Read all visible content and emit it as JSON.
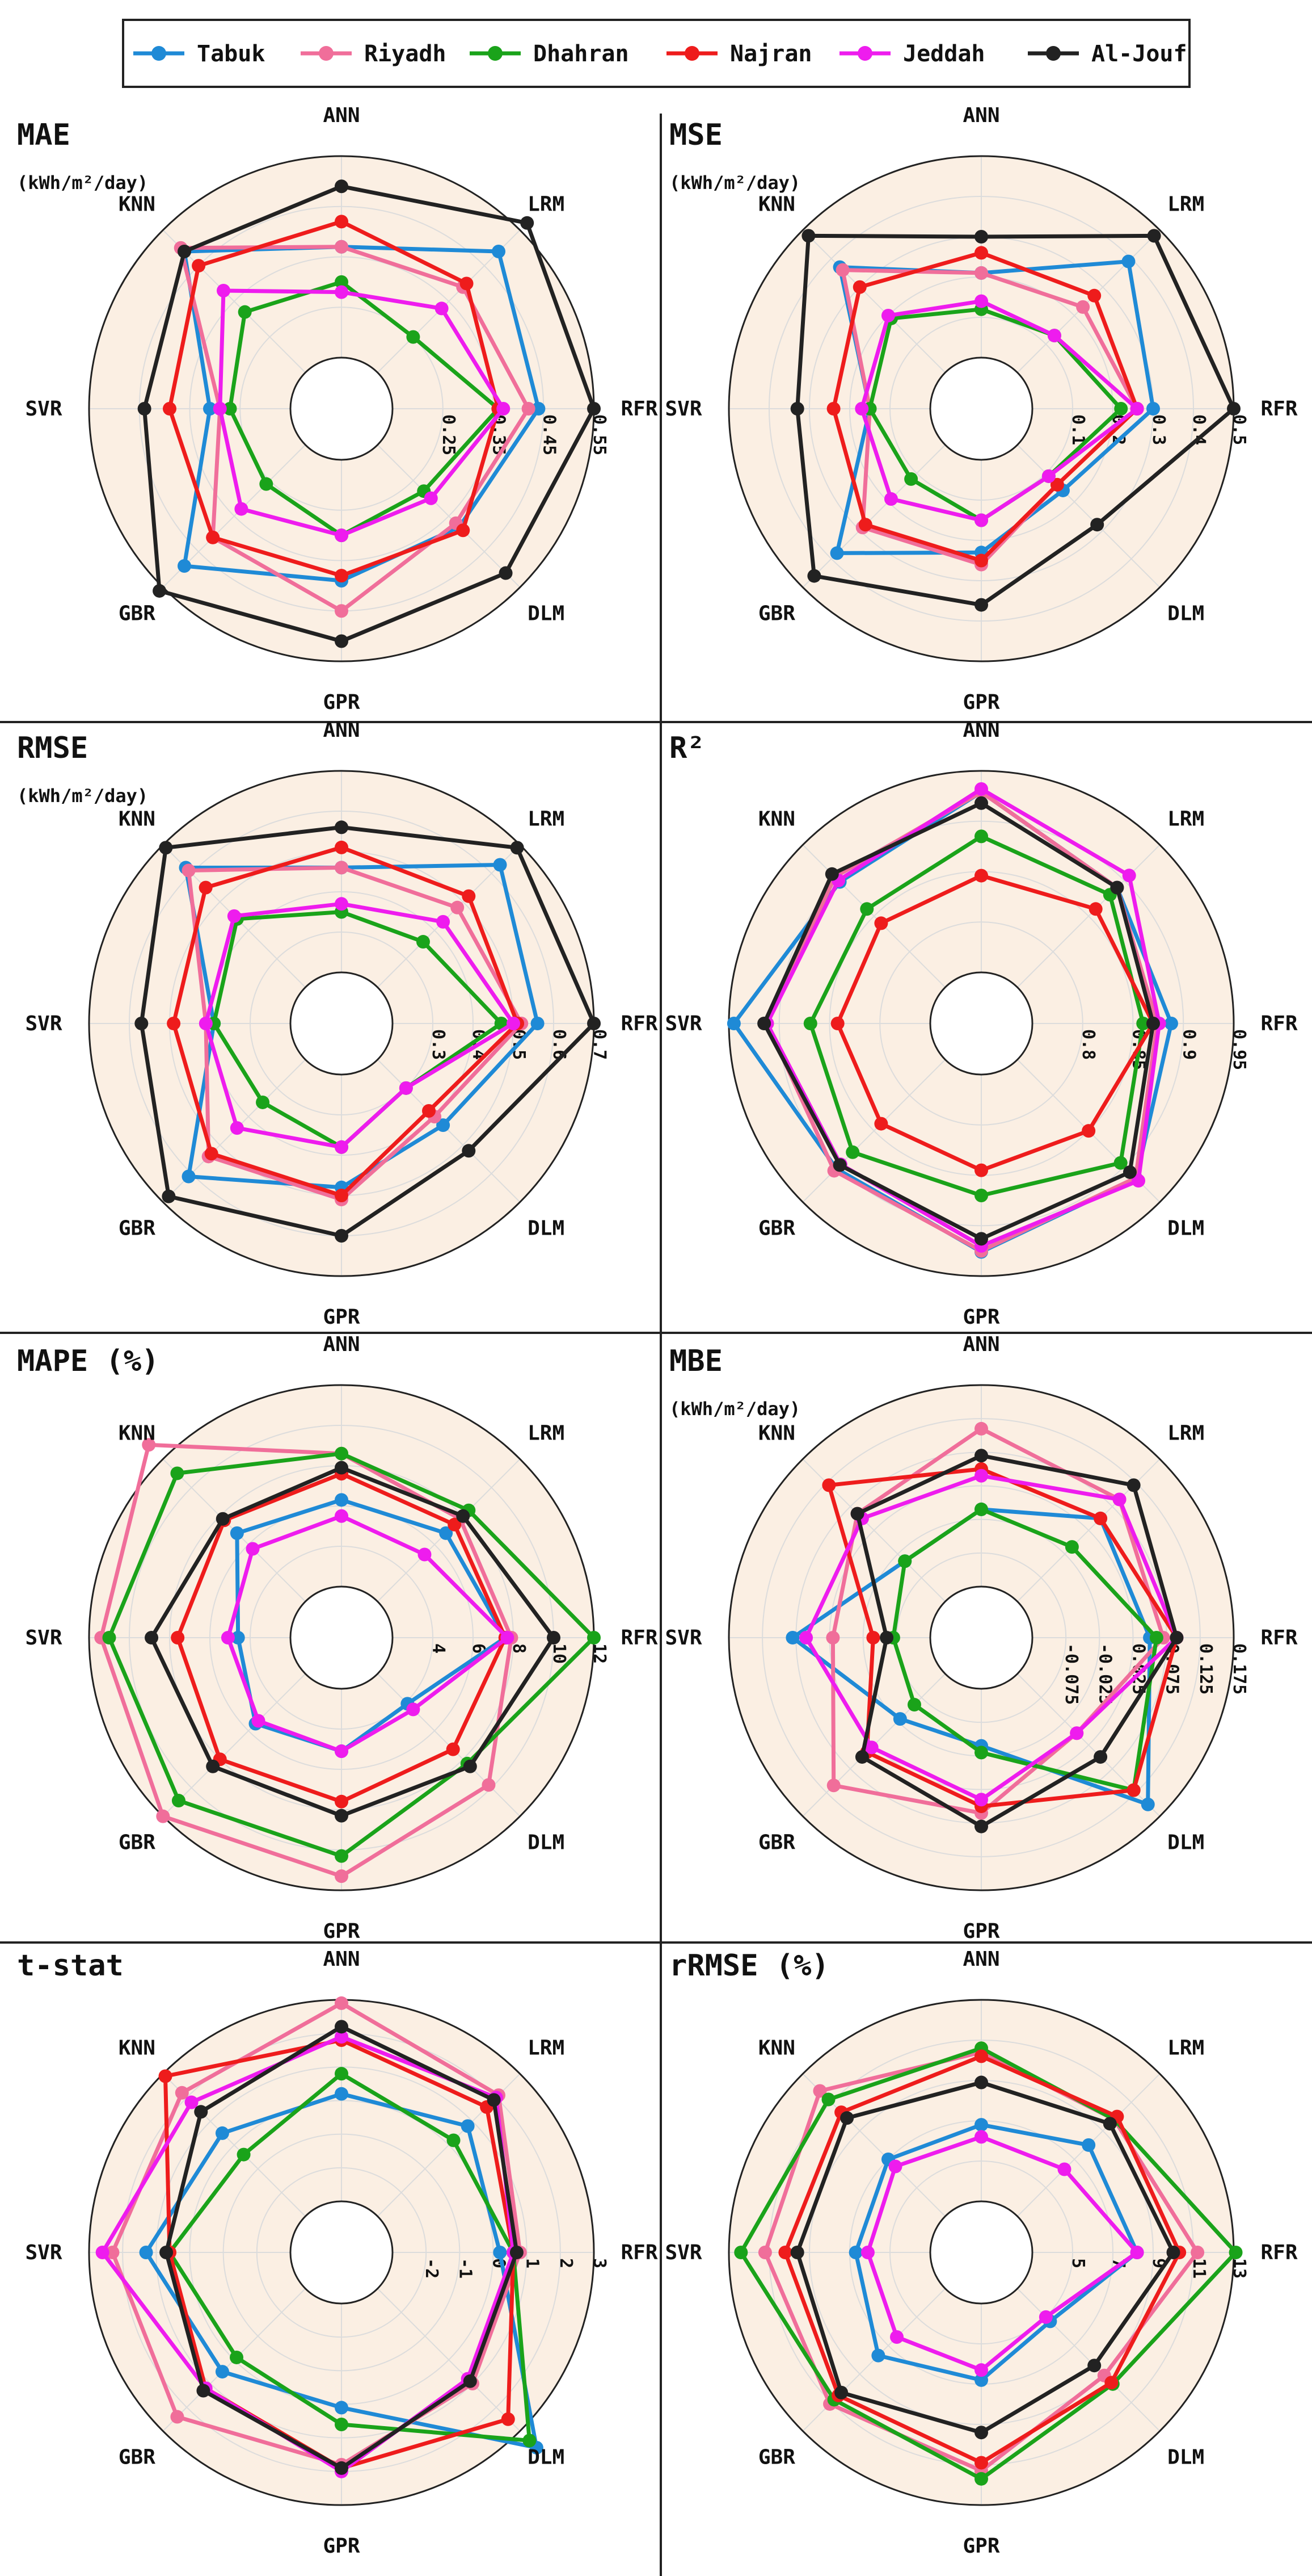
{
  "legend": [
    "Tabuk",
    "Riyadh",
    "Dhahran",
    "Najran",
    "Jeddah",
    "Al-Jouf"
  ],
  "colors": {
    "Tabuk": "#1f8ad6",
    "Riyadh": "#f06e9a",
    "Dhahran": "#1aa31a",
    "Najran": "#ee1c1c",
    "Jeddah": "#ee1cee",
    "Al-Jouf": "#222222",
    "panel_bg": "#fbefe3",
    "grid": "#dcdcdc"
  },
  "chart_data": [
    {
      "type": "radar",
      "title": "MAE",
      "unit": "(kWh/m²/day)",
      "axes": [
        "RFR",
        "LRM",
        "ANN",
        "KNN",
        "SVR",
        "GBR",
        "GPR",
        "DLM"
      ],
      "rlim": [
        0.15,
        0.55
      ],
      "ticks": [
        "0.25",
        "0.35",
        "0.45",
        "0.55"
      ],
      "tick_values": [
        0.25,
        0.35,
        0.45,
        0.55
      ],
      "series": [
        {
          "name": "Tabuk",
          "values": [
            0.44,
            0.49,
            0.37,
            0.49,
            0.31,
            0.49,
            0.39,
            0.38
          ]
        },
        {
          "name": "Riyadh",
          "values": [
            0.42,
            0.39,
            0.37,
            0.5,
            0.29,
            0.41,
            0.45,
            0.37
          ]
        },
        {
          "name": "Dhahran",
          "values": [
            0.36,
            0.25,
            0.3,
            0.32,
            0.27,
            0.26,
            0.3,
            0.28
          ]
        },
        {
          "name": "Najran",
          "values": [
            0.36,
            0.4,
            0.42,
            0.45,
            0.39,
            0.41,
            0.38,
            0.39
          ]
        },
        {
          "name": "Jeddah",
          "values": [
            0.37,
            0.33,
            0.28,
            0.38,
            0.29,
            0.33,
            0.3,
            0.3
          ]
        },
        {
          "name": "Al-Jouf",
          "values": [
            0.55,
            0.57,
            0.49,
            0.49,
            0.44,
            0.56,
            0.51,
            0.51
          ]
        }
      ]
    },
    {
      "type": "radar",
      "title": "MSE",
      "unit": "(kWh/m²/day)",
      "axes": [
        "RFR",
        "LRM",
        "ANN",
        "KNN",
        "SVR",
        "GBR",
        "GPR",
        "DLM"
      ],
      "rlim": [
        0.0,
        0.5
      ],
      "ticks": [
        "0.1",
        "0.2",
        "0.3",
        "0.4",
        "0.5"
      ],
      "tick_values": [
        0.1,
        0.2,
        0.3,
        0.4,
        0.5
      ],
      "series": [
        {
          "name": "Tabuk",
          "values": [
            0.3,
            0.39,
            0.21,
            0.37,
            0.15,
            0.38,
            0.23,
            0.16
          ]
        },
        {
          "name": "Riyadh",
          "values": [
            0.26,
            0.23,
            0.21,
            0.36,
            0.15,
            0.29,
            0.26,
            0.14
          ]
        },
        {
          "name": "Dhahran",
          "values": [
            0.22,
            0.13,
            0.12,
            0.19,
            0.15,
            0.12,
            0.15,
            0.11
          ]
        },
        {
          "name": "Najran",
          "values": [
            0.26,
            0.27,
            0.26,
            0.3,
            0.24,
            0.28,
            0.25,
            0.14
          ]
        },
        {
          "name": "Jeddah",
          "values": [
            0.26,
            0.13,
            0.14,
            0.2,
            0.17,
            0.19,
            0.15,
            0.11
          ]
        },
        {
          "name": "Al-Jouf",
          "values": [
            0.5,
            0.48,
            0.3,
            0.48,
            0.33,
            0.46,
            0.36,
            0.28
          ]
        }
      ]
    },
    {
      "type": "radar",
      "title": "RMSE",
      "unit": "(kWh/m²/day)",
      "axes": [
        "RFR",
        "LRM",
        "ANN",
        "KNN",
        "SVR",
        "GBR",
        "GPR",
        "DLM"
      ],
      "rlim": [
        0.2,
        0.7
      ],
      "ticks": [
        "0.3",
        "0.4",
        "0.5",
        "0.6",
        "0.7"
      ],
      "tick_values": [
        0.3,
        0.4,
        0.5,
        0.6,
        0.7
      ],
      "series": [
        {
          "name": "Tabuk",
          "values": [
            0.56,
            0.63,
            0.46,
            0.62,
            0.39,
            0.61,
            0.48,
            0.43
          ]
        },
        {
          "name": "Riyadh",
          "values": [
            0.52,
            0.48,
            0.46,
            0.61,
            0.41,
            0.54,
            0.51,
            0.4
          ]
        },
        {
          "name": "Dhahran",
          "values": [
            0.47,
            0.36,
            0.35,
            0.44,
            0.39,
            0.35,
            0.38,
            0.3
          ]
        },
        {
          "name": "Najran",
          "values": [
            0.51,
            0.52,
            0.51,
            0.55,
            0.49,
            0.53,
            0.5,
            0.38
          ]
        },
        {
          "name": "Jeddah",
          "values": [
            0.5,
            0.43,
            0.37,
            0.45,
            0.41,
            0.44,
            0.38,
            0.3
          ]
        },
        {
          "name": "Al-Jouf",
          "values": [
            0.7,
            0.69,
            0.56,
            0.69,
            0.57,
            0.68,
            0.6,
            0.52
          ]
        }
      ]
    },
    {
      "type": "radar",
      "title": "R²",
      "unit": "",
      "axes": [
        "RFR",
        "LRM",
        "ANN",
        "KNN",
        "SVR",
        "GBR",
        "GPR",
        "DLM"
      ],
      "rlim": [
        0.75,
        0.95
      ],
      "ticks": [
        "0.8",
        "0.85",
        "0.9",
        "0.95"
      ],
      "tick_values": [
        0.8,
        0.85,
        0.9,
        0.95
      ],
      "series": [
        {
          "name": "Tabuk",
          "values": [
            0.888,
            0.89,
            0.929,
            0.898,
            0.945,
            0.903,
            0.926,
            0.917
          ]
        },
        {
          "name": "Riyadh",
          "values": [
            0.874,
            0.89,
            0.929,
            0.905,
            0.912,
            0.906,
            0.925,
            0.916
          ]
        },
        {
          "name": "Dhahran",
          "values": [
            0.86,
            0.88,
            0.885,
            0.86,
            0.869,
            0.88,
            0.87,
            0.895
          ]
        },
        {
          "name": "Najran",
          "values": [
            0.87,
            0.86,
            0.846,
            0.84,
            0.842,
            0.84,
            0.845,
            0.85
          ]
        },
        {
          "name": "Jeddah",
          "values": [
            0.876,
            0.907,
            0.932,
            0.9,
            0.912,
            0.897,
            0.92,
            0.92
          ]
        },
        {
          "name": "Al-Jouf",
          "values": [
            0.87,
            0.89,
            0.918,
            0.909,
            0.915,
            0.898,
            0.913,
            0.908
          ]
        }
      ]
    },
    {
      "type": "radar",
      "title": "MAPE (%)",
      "unit": "",
      "axes": [
        "RFR",
        "LRM",
        "ANN",
        "KNN",
        "SVR",
        "GBR",
        "GPR",
        "DLM"
      ],
      "rlim": [
        2,
        12
      ],
      "ticks": [
        "4",
        "6",
        "8",
        "10",
        "12"
      ],
      "tick_values": [
        4,
        6,
        8,
        10,
        12
      ],
      "series": [
        {
          "name": "Tabuk",
          "values": [
            7.6,
            6.8,
            6.3,
            6.8,
            4.6,
            5.5,
            5.1,
            4.1
          ]
        },
        {
          "name": "Riyadh",
          "values": [
            7.9,
            7.8,
            8.6,
            13.0,
            11.4,
            12.0,
            11.3,
            9.8
          ]
        },
        {
          "name": "Dhahran",
          "values": [
            12.0,
            8.4,
            8.6,
            11.0,
            11.0,
            10.9,
            10.3,
            8.3
          ]
        },
        {
          "name": "Najran",
          "values": [
            7.6,
            7.4,
            7.6,
            7.7,
            7.6,
            8.0,
            7.6,
            7.3
          ]
        },
        {
          "name": "Jeddah",
          "values": [
            7.7,
            5.3,
            5.5,
            5.7,
            5.1,
            5.3,
            5.1,
            4.5
          ]
        },
        {
          "name": "Al-Jouf",
          "values": [
            10.0,
            8.0,
            7.9,
            7.8,
            8.9,
            8.5,
            8.3,
            8.5
          ]
        }
      ]
    },
    {
      "type": "radar",
      "title": "MBE",
      "unit": "(kWh/m²/day)",
      "axes": [
        "RFR",
        "LRM",
        "ANN",
        "KNN",
        "SVR",
        "GBR",
        "GPR",
        "DLM"
      ],
      "rlim": [
        -0.125,
        0.175
      ],
      "ticks": [
        "-0.075",
        "-0.025",
        "0.025",
        "0.075",
        "0.125",
        "0.175"
      ],
      "tick_values": [
        -0.075,
        -0.025,
        0.025,
        0.075,
        0.125,
        0.175
      ],
      "series": [
        {
          "name": "Tabuk",
          "values": [
            0.05,
            0.05,
            -0.01,
            -0.04,
            0.08,
            -0.03,
            -0.04,
            0.15
          ]
        },
        {
          "name": "Riyadh",
          "values": [
            0.07,
            0.09,
            0.11,
            0.06,
            0.02,
            0.11,
            0.06,
            0.0
          ]
        },
        {
          "name": "Dhahran",
          "values": [
            0.06,
            -0.01,
            -0.01,
            -0.04,
            -0.07,
            -0.06,
            -0.03,
            0.12
          ]
        },
        {
          "name": "Najran",
          "values": [
            0.09,
            0.05,
            0.05,
            0.12,
            -0.04,
            0.04,
            0.05,
            0.12
          ]
        },
        {
          "name": "Jeddah",
          "values": [
            0.09,
            0.09,
            0.04,
            0.05,
            0.06,
            0.03,
            0.04,
            0.0
          ]
        },
        {
          "name": "Al-Jouf",
          "values": [
            0.09,
            0.12,
            0.07,
            0.06,
            -0.06,
            0.05,
            0.08,
            0.05
          ]
        }
      ]
    },
    {
      "type": "radar",
      "title": "t-stat",
      "unit": "",
      "axes": [
        "RFR",
        "LRM",
        "ANN",
        "KNN",
        "SVR",
        "GBR",
        "GPR",
        "DLM"
      ],
      "rlim": [
        -3,
        3
      ],
      "ticks": [
        "-2",
        "-1",
        "0",
        "1",
        "2",
        "3"
      ],
      "tick_values": [
        -2,
        -1,
        0,
        1,
        2,
        3
      ],
      "series": [
        {
          "name": "Tabuk",
          "values": [
            0.2,
            0.8,
            0.2,
            0.5,
            1.3,
            0.5,
            0.1,
            3.7
          ]
        },
        {
          "name": "Riyadh",
          "values": [
            0.8,
            2.1,
            2.9,
            2.2,
            2.3,
            2.4,
            1.8,
            1.0
          ]
        },
        {
          "name": "Dhahran",
          "values": [
            0.6,
            0.2,
            0.8,
            -0.4,
            0.6,
            -0.1,
            0.6,
            3.4
          ]
        },
        {
          "name": "Najran",
          "values": [
            0.6,
            1.6,
            1.8,
            2.9,
            0.6,
            1.2,
            1.9,
            2.5
          ]
        },
        {
          "name": "Jeddah",
          "values": [
            0.6,
            2.0,
            1.9,
            1.8,
            2.6,
            1.2,
            2.0,
            0.8
          ]
        },
        {
          "name": "Al-Jouf",
          "values": [
            0.7,
            1.9,
            2.2,
            1.4,
            0.7,
            1.3,
            1.9,
            0.9
          ]
        }
      ]
    },
    {
      "type": "radar",
      "title": "rRMSE (%)",
      "unit": "",
      "axes": [
        "RFR",
        "LRM",
        "ANN",
        "KNN",
        "SVR",
        "GBR",
        "GPR",
        "DLM"
      ],
      "rlim": [
        3,
        13
      ],
      "ticks": [
        "5",
        "7",
        "9",
        "11",
        "13"
      ],
      "tick_values": [
        5,
        7,
        9,
        11,
        13
      ],
      "series": [
        {
          "name": "Tabuk",
          "values": [
            8.2,
            8.0,
            6.8,
            7.0,
            6.7,
            7.7,
            6.8,
            5.3
          ]
        },
        {
          "name": "Riyadh",
          "values": [
            11.2,
            9.8,
            10.4,
            11.8,
            11.2,
            11.1,
            11.3,
            9.1
          ]
        },
        {
          "name": "Dhahran",
          "values": [
            13.1,
            9.8,
            10.6,
            11.2,
            12.4,
            10.8,
            11.7,
            9.7
          ]
        },
        {
          "name": "Najran",
          "values": [
            10.3,
            10.0,
            10.2,
            10.3,
            10.2,
            10.5,
            10.9,
            9.6
          ]
        },
        {
          "name": "Jeddah",
          "values": [
            8.2,
            6.3,
            6.2,
            6.5,
            6.1,
            6.4,
            6.3,
            5.0
          ]
        },
        {
          "name": "Al-Jouf",
          "values": [
            10.0,
            9.5,
            8.9,
            9.9,
            9.6,
            10.3,
            9.4,
            8.4
          ]
        }
      ]
    }
  ]
}
